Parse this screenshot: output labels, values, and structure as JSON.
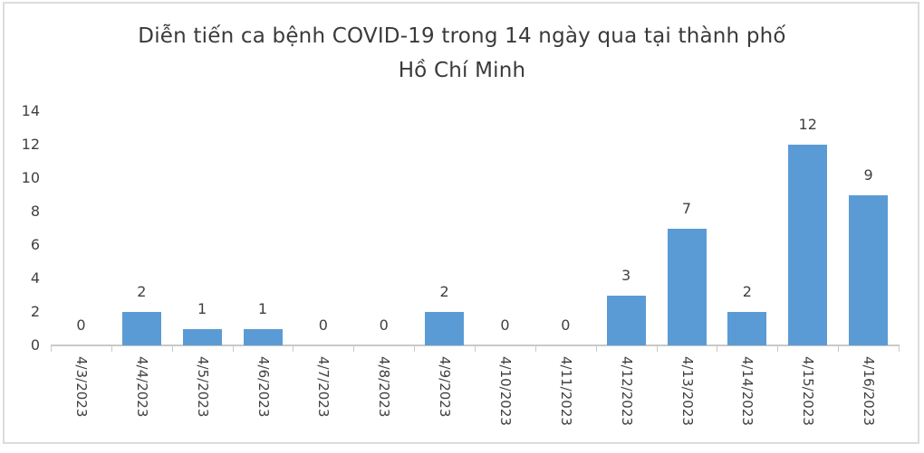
{
  "chart": {
    "title": "Diễn tiến ca bệnh COVID-19 trong 14 ngày qua tại thành phố Hồ Chí Minh",
    "title_lines": [
      "Diễn tiến ca bệnh COVID-19 trong 14 ngày qua tại thành phố",
      "Hồ Chí Minh"
    ]
  },
  "chart_data": {
    "type": "bar",
    "title": "Diễn tiến ca bệnh COVID-19 trong 14 ngày qua tại thành phố Hồ Chí Minh",
    "categories": [
      "4/3/2023",
      "4/4/2023",
      "4/5/2023",
      "4/6/2023",
      "4/7/2023",
      "4/8/2023",
      "4/9/2023",
      "4/10/2023",
      "4/11/2023",
      "4/12/2023",
      "4/13/2023",
      "4/14/2023",
      "4/15/2023",
      "4/16/2023"
    ],
    "values": [
      0,
      2,
      1,
      1,
      0,
      0,
      2,
      0,
      0,
      3,
      7,
      2,
      12,
      9
    ],
    "xlabel": "",
    "ylabel": "",
    "ylim": [
      0,
      14
    ],
    "yticks": [
      0,
      2,
      4,
      6,
      8,
      10,
      12,
      14
    ],
    "grid": false,
    "legend": false,
    "data_labels": "outside-end",
    "x_label_rotation_deg": 90,
    "bar_color": "#5b9bd5",
    "text_color": "#404040",
    "axis_color": "#c9c9c9",
    "title_color": "#3a3a3a",
    "frame_color": "#dcdcdc"
  }
}
